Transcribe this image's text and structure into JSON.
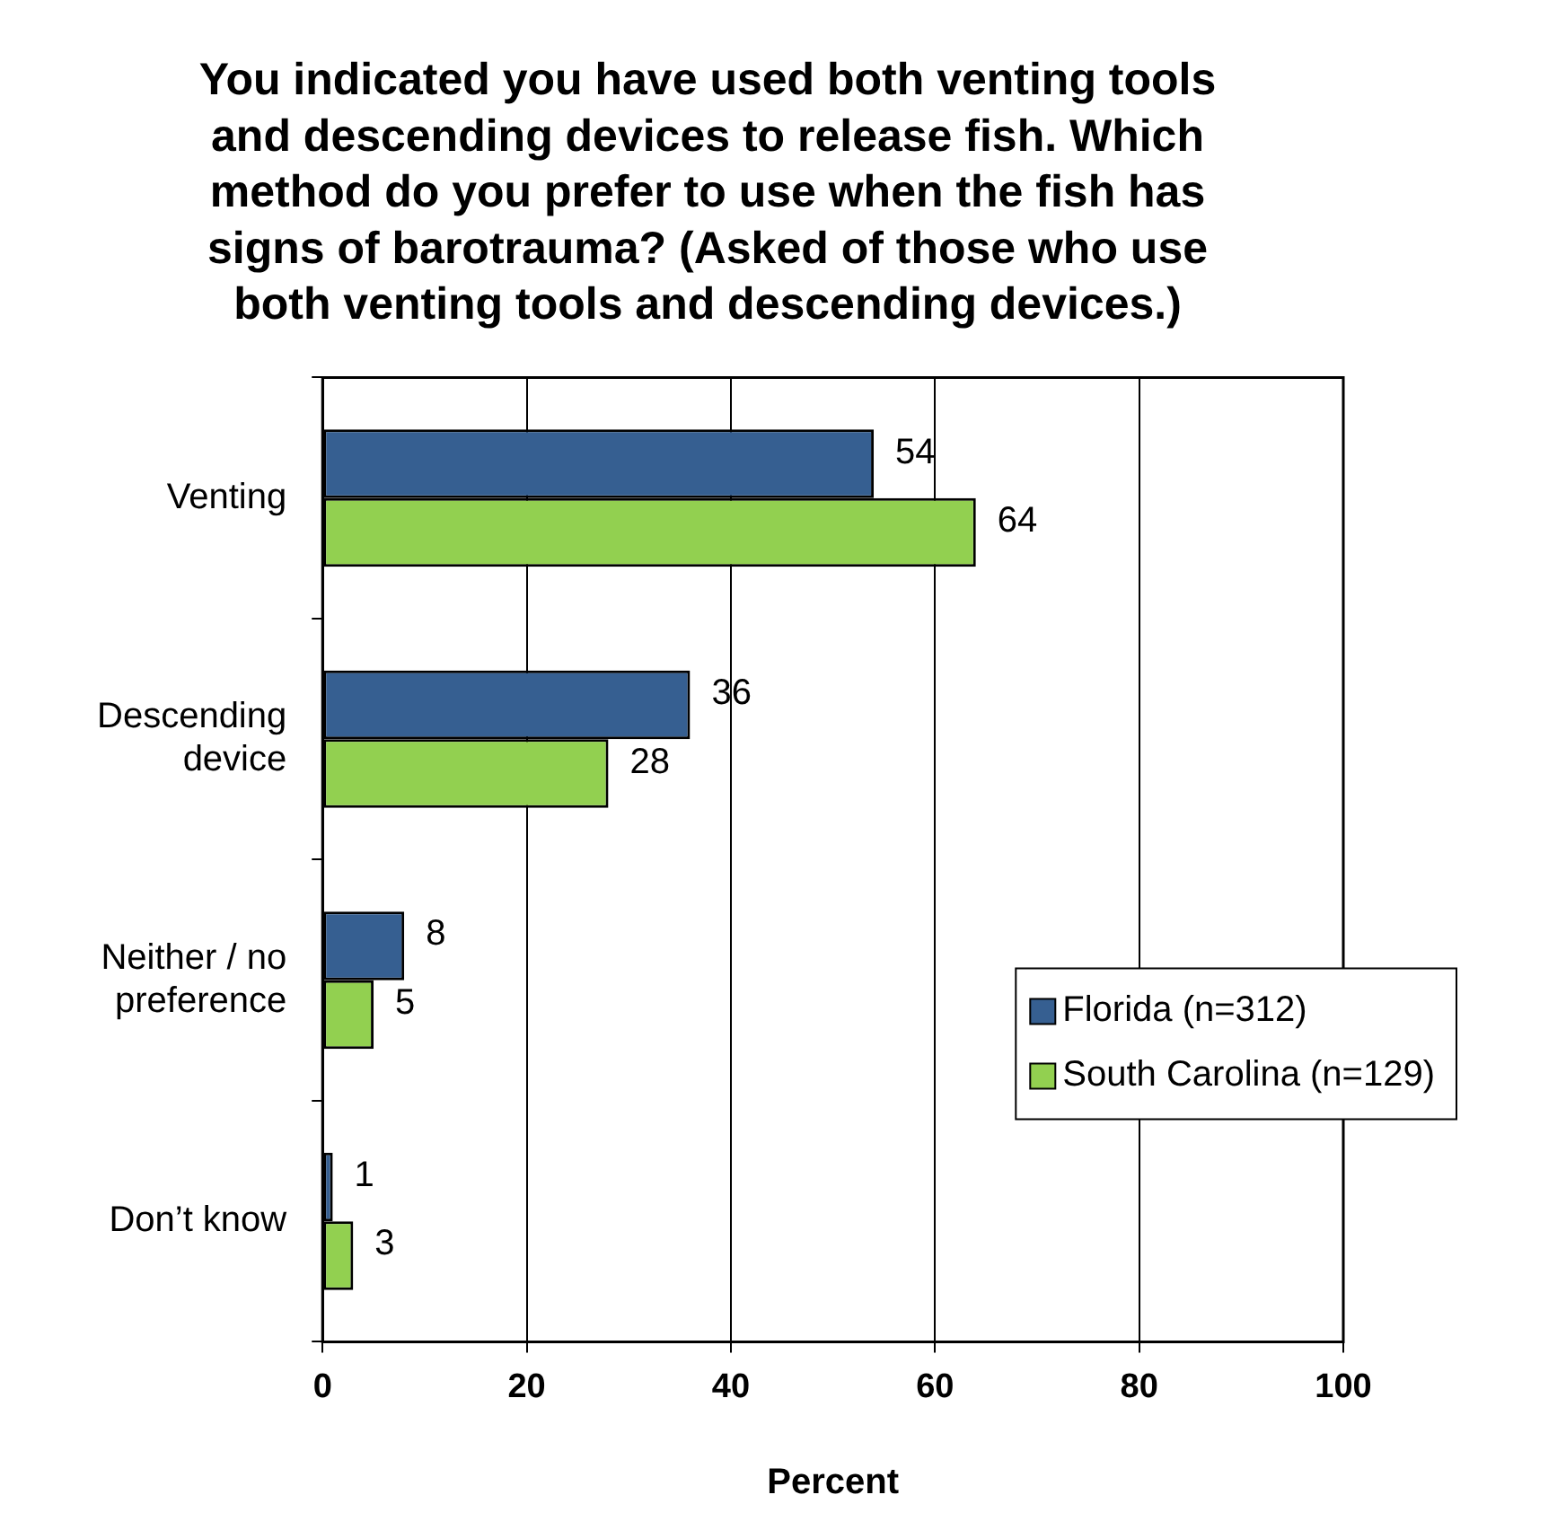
{
  "chart_data": {
    "type": "bar",
    "orientation": "horizontal",
    "title": "You indicated you have used both venting tools and descending devices to release fish. Which method do you prefer to use when the fish has signs of barotrauma? (Asked of those who use both venting tools and descending devices.)",
    "xlabel": "Percent",
    "categories": [
      "Venting",
      "Descending device",
      "Neither / no preference",
      "Don’t know"
    ],
    "series": [
      {
        "name": "Florida (n=312)",
        "color": "#365f91",
        "values": [
          54,
          36,
          8,
          1
        ]
      },
      {
        "name": "South Carolina (n=129)",
        "color": "#92d050",
        "values": [
          64,
          28,
          5,
          3
        ]
      }
    ],
    "xlim": [
      0,
      100
    ],
    "xticks": [
      0,
      20,
      40,
      60,
      80,
      100
    ],
    "grid": "x",
    "legend": "bottom right",
    "data_labels": true
  }
}
